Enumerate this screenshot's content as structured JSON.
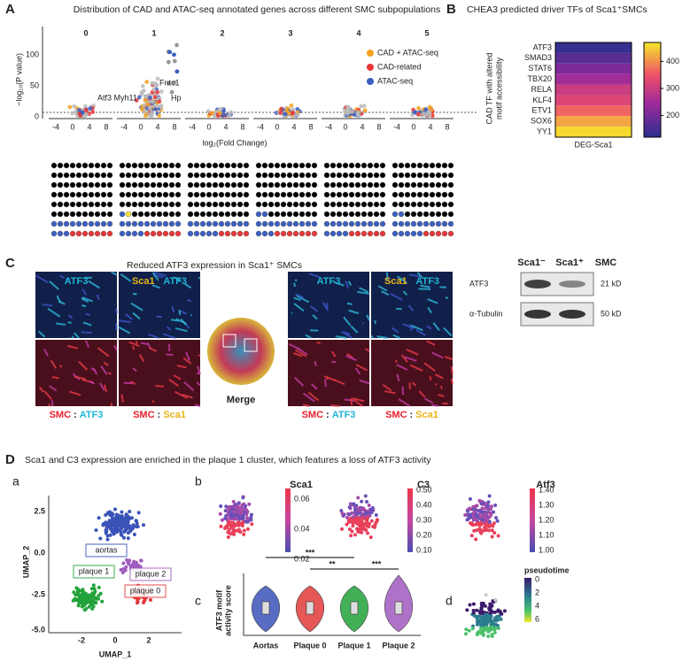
{
  "panel_a": {
    "label": "A",
    "title": "Distribution of CAD and ATAC-seq annotated genes across different SMC subpopulations",
    "clusters": [
      "0",
      "1",
      "2",
      "3",
      "4",
      "5"
    ],
    "y_label": "−log₁₀(P value)",
    "x_label": "log₂(Fold  Change)",
    "yticks": [
      "0",
      "50",
      "100"
    ],
    "xticks": [
      "-4",
      "0",
      "4",
      "8"
    ],
    "legend": [
      {
        "name": "CAD + ATAC-seq",
        "color": "#f4a21f"
      },
      {
        "name": "CAD-related",
        "color": "#e8373a"
      },
      {
        "name": "ATAC-seq",
        "color": "#3b5fc0"
      }
    ],
    "gene_labels": [
      "Atf3 Myh11",
      "Fntc1",
      "Hp"
    ]
  },
  "panel_b": {
    "label": "B",
    "title": "CHEA3 predicted driver TFs of Sca1⁺SMCs",
    "y_label": [
      "CAD TF with altered",
      "motif accessibility"
    ],
    "tfs": [
      "ATF3",
      "SMAD3",
      "STAT6",
      "TBX20",
      "RELA",
      "KLF4",
      "ETV1",
      "SOX6",
      "YY1"
    ],
    "values": [
      130,
      165,
      205,
      245,
      300,
      325,
      370,
      420,
      460
    ],
    "x_label": "DEG-Sca1",
    "clim": [
      120,
      470
    ],
    "colorbar_ticks": [
      200,
      300,
      400
    ]
  },
  "panel_c": {
    "label": "C",
    "title": "Reduced ATF3 expression in Sca1⁺ SMCs",
    "image_labels": [
      [
        "ATF3"
      ],
      [
        "Sca1",
        ":",
        "ATF3"
      ],
      [
        "SMC",
        ":",
        "ATF3"
      ],
      [
        "SMC",
        ":",
        "Sca1"
      ]
    ],
    "merge": "Merge",
    "blot_headers": [
      "Sca1⁻",
      "Sca1⁺",
      "SMC"
    ],
    "blot_rows": [
      {
        "protein": "ATF3",
        "size": "21 kD"
      },
      {
        "protein": "α-Tubulin",
        "size": "50 kD"
      }
    ]
  },
  "panel_d": {
    "label": "D",
    "title": "Sca1 and C3 expression are enriched in the plaque 1 cluster, which features a loss of ATF3 activity",
    "a": {
      "label": "a",
      "clusters": [
        "aortas",
        "plaque 2",
        "plaque 1",
        "plaque 0"
      ],
      "x_label": "UMAP_1",
      "y_label": "UMAP_2",
      "xticks": [
        "-2",
        "0",
        "2"
      ],
      "yticks": [
        "2.5",
        "0.0",
        "-2.5",
        "-5.0"
      ]
    },
    "b": {
      "label": "b",
      "maps": [
        {
          "name": "Sca1",
          "ticks": [
            "0.06",
            "0.04",
            "0.02"
          ]
        },
        {
          "name": "C3",
          "ticks": [
            "0.50",
            "0.40",
            "0.30",
            "0.20",
            "0.10"
          ]
        },
        {
          "name": "Atf3",
          "ticks": [
            "1.40",
            "1.30",
            "1.20",
            "1.10",
            "1.00"
          ]
        }
      ]
    },
    "c": {
      "label": "c",
      "y_label": [
        "ATF3 motif",
        "activity score"
      ],
      "groups": [
        "Aortas",
        "Plaque 0",
        "Plaque 1",
        "Plaque 2"
      ],
      "significance": [
        "***",
        "**",
        "***"
      ]
    },
    "d": {
      "label": "d",
      "legend_title": "pseudotime",
      "ticks": [
        "0",
        "2",
        "4",
        "6"
      ]
    }
  }
}
